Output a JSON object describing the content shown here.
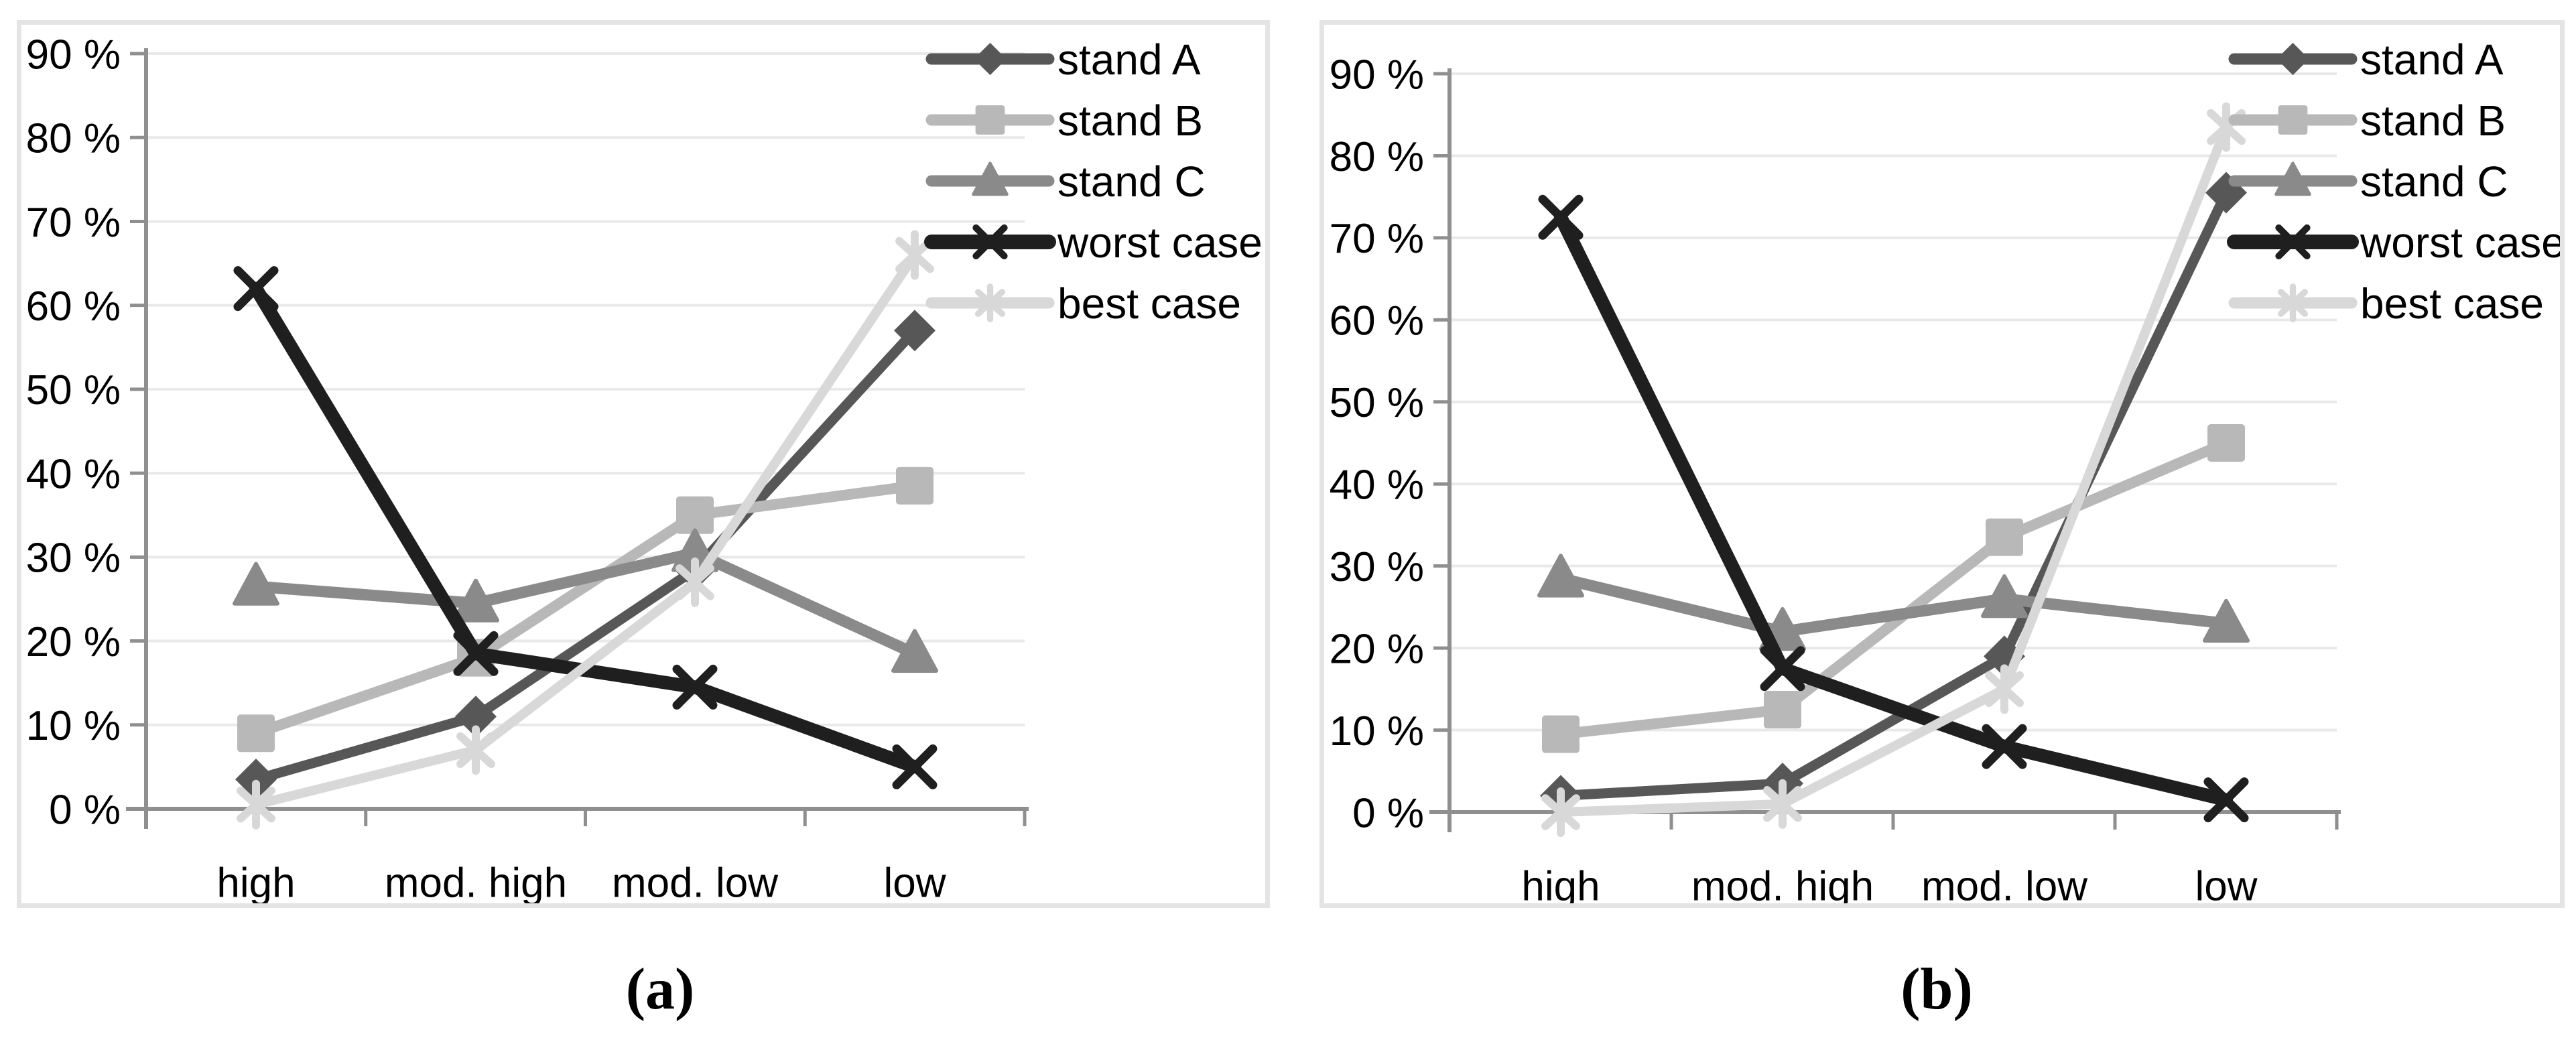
{
  "figure": {
    "caption_a": "(a)",
    "caption_b": "(b)"
  },
  "colors": {
    "stand_a": "#575757",
    "stand_b": "#b8b8b8",
    "stand_c": "#8a8a8a",
    "worst_case": "#1f1f1f",
    "best_case": "#d8d8d8",
    "axis": "#8f8f8f",
    "gridline": "#e9e9e9",
    "panel_border": "#e4e4e4",
    "text": "#000000"
  },
  "chart_data": [
    {
      "id": "a",
      "type": "line",
      "caption": "(a)",
      "categories": [
        "high",
        "mod. high",
        "mod. low",
        "low"
      ],
      "ylim": [
        0,
        90
      ],
      "ytick_step": 10,
      "ytick_suffix": " %",
      "grid": true,
      "legend_position": "top-right",
      "legend_entries": [
        "stand A",
        "stand B",
        "stand C",
        "worst case",
        "best case"
      ],
      "series": [
        {
          "name": "stand A",
          "marker": "diamond",
          "color": "#575757",
          "values": [
            3.5,
            11,
            28.5,
            57
          ]
        },
        {
          "name": "stand B",
          "marker": "square",
          "color": "#b8b8b8",
          "values": [
            9,
            18,
            35,
            38.5
          ]
        },
        {
          "name": "stand C",
          "marker": "triangle",
          "color": "#8a8a8a",
          "values": [
            26.5,
            24.5,
            30.5,
            18.5
          ]
        },
        {
          "name": "worst case",
          "marker": "x",
          "color": "#1f1f1f",
          "values": [
            62,
            18.5,
            14.5,
            5
          ]
        },
        {
          "name": "best case",
          "marker": "asterisk",
          "color": "#d8d8d8",
          "values": [
            0.5,
            7,
            27,
            66
          ]
        }
      ]
    },
    {
      "id": "b",
      "type": "line",
      "caption": "(b)",
      "categories": [
        "high",
        "mod. high",
        "mod. low",
        "low"
      ],
      "ylim": [
        0,
        90
      ],
      "ytick_step": 10,
      "ytick_suffix": " %",
      "grid": true,
      "legend_position": "top-right",
      "legend_entries": [
        "stand A",
        "stand B",
        "stand C",
        "worst case",
        "best case"
      ],
      "series": [
        {
          "name": "stand A",
          "marker": "diamond",
          "color": "#575757",
          "values": [
            2,
            3.5,
            19,
            75.5
          ]
        },
        {
          "name": "stand B",
          "marker": "square",
          "color": "#b8b8b8",
          "values": [
            9.5,
            12.5,
            33.5,
            45
          ]
        },
        {
          "name": "stand C",
          "marker": "triangle",
          "color": "#8a8a8a",
          "values": [
            28.5,
            22,
            26,
            23
          ]
        },
        {
          "name": "worst case",
          "marker": "x",
          "color": "#1f1f1f",
          "values": [
            72.5,
            17.5,
            8,
            1.5
          ]
        },
        {
          "name": "best case",
          "marker": "asterisk",
          "color": "#d8d8d8",
          "values": [
            0,
            1,
            15,
            83.5
          ]
        }
      ]
    }
  ]
}
